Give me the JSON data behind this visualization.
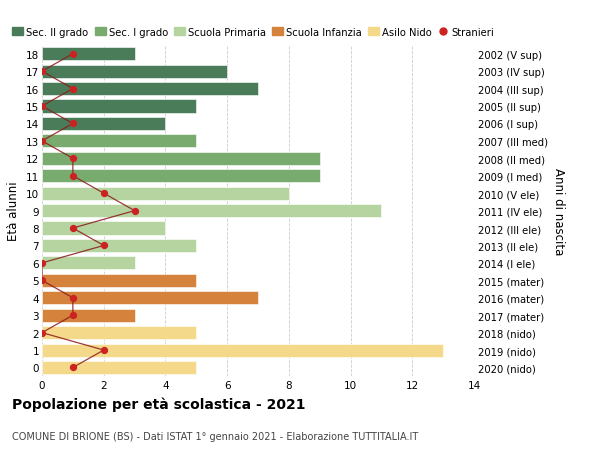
{
  "ages": [
    18,
    17,
    16,
    15,
    14,
    13,
    12,
    11,
    10,
    9,
    8,
    7,
    6,
    5,
    4,
    3,
    2,
    1,
    0
  ],
  "years": [
    "2002 (V sup)",
    "2003 (IV sup)",
    "2004 (III sup)",
    "2005 (II sup)",
    "2006 (I sup)",
    "2007 (III med)",
    "2008 (II med)",
    "2009 (I med)",
    "2010 (V ele)",
    "2011 (IV ele)",
    "2012 (III ele)",
    "2013 (II ele)",
    "2014 (I ele)",
    "2015 (mater)",
    "2016 (mater)",
    "2017 (mater)",
    "2018 (nido)",
    "2019 (nido)",
    "2020 (nido)"
  ],
  "bar_values": [
    3,
    6,
    7,
    5,
    4,
    5,
    9,
    9,
    8,
    11,
    4,
    5,
    3,
    5,
    7,
    3,
    5,
    13,
    5
  ],
  "bar_colors": [
    "#4a7c59",
    "#4a7c59",
    "#4a7c59",
    "#4a7c59",
    "#4a7c59",
    "#7aab6e",
    "#7aab6e",
    "#7aab6e",
    "#b5d4a0",
    "#b5d4a0",
    "#b5d4a0",
    "#b5d4a0",
    "#b5d4a0",
    "#d4823c",
    "#d4823c",
    "#d4823c",
    "#f5d98b",
    "#f5d98b",
    "#f5d98b"
  ],
  "stranieri_values": [
    1,
    0,
    1,
    0,
    1,
    0,
    1,
    1,
    2,
    3,
    1,
    2,
    0,
    0,
    1,
    1,
    0,
    2,
    1
  ],
  "legend_labels": [
    "Sec. II grado",
    "Sec. I grado",
    "Scuola Primaria",
    "Scuola Infanzia",
    "Asilo Nido",
    "Stranieri"
  ],
  "legend_colors": [
    "#4a7c59",
    "#7aab6e",
    "#b5d4a0",
    "#d4823c",
    "#f5d98b",
    "#cc2222"
  ],
  "title": "Popolazione per età scolastica - 2021",
  "subtitle": "COMUNE DI BRIONE (BS) - Dati ISTAT 1° gennaio 2021 - Elaborazione TUTTITALIA.IT",
  "ylabel_left": "Età alunni",
  "ylabel_right": "Anni di nascita",
  "xlim": [
    0,
    14
  ],
  "xticks": [
    0,
    2,
    4,
    6,
    8,
    10,
    12,
    14
  ],
  "background_color": "#ffffff",
  "grid_color": "#cccccc"
}
